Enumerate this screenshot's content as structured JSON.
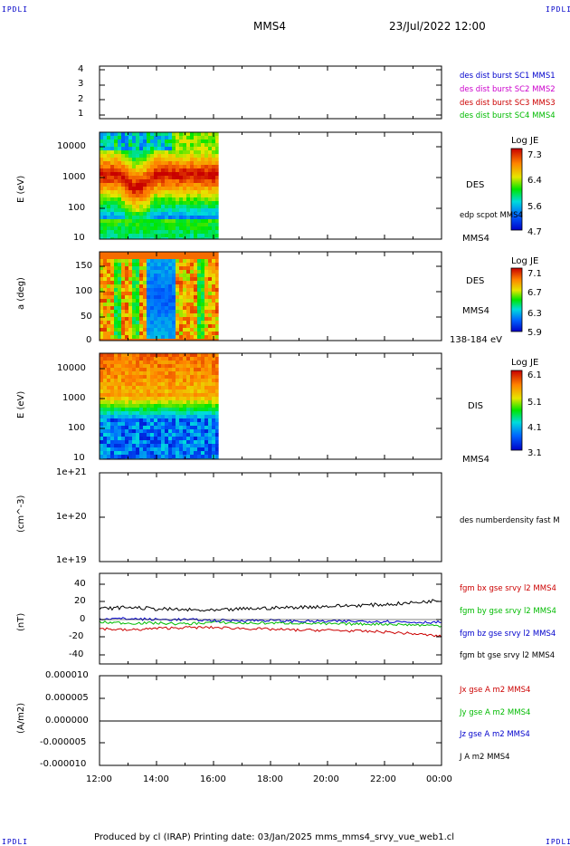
{
  "corners": {
    "tl": "IPDLI",
    "tr": "IPDLI",
    "bl": "IPDLI",
    "br": "IPDLI"
  },
  "header": {
    "spacecraft": "MMS4",
    "datetime": "23/Jul/2022 12:00"
  },
  "footer": {
    "text": "Produced by cl (IRAP)   Printing date: 03/Jan/2025   mms_mms4_srvy_vue_web1.cl"
  },
  "panels": {
    "p1": {
      "yticks": [
        "4",
        "3",
        "2",
        "1"
      ],
      "legend": [
        {
          "text": "des dist burst SC1 MMS1",
          "color": "#0000cc"
        },
        {
          "text": "des dist burst SC2 MMS2",
          "color": "#cc00cc"
        },
        {
          "text": "des dist burst SC3 MMS3",
          "color": "#cc0000"
        },
        {
          "text": "des dist burst SC4 MMS4",
          "color": "#00bb00"
        }
      ]
    },
    "p2": {
      "ylabel": "E (eV)",
      "yticks": [
        "10000",
        "1000",
        "100",
        "10"
      ],
      "instrument": "DES",
      "overlay": "edp scpot MMS4",
      "spacecraft": "MMS4",
      "cb_title": "Log JE",
      "cb_ticks": [
        "7.3",
        "6.4",
        "5.6",
        "4.7"
      ]
    },
    "p3": {
      "ylabel": "a (deg)",
      "yticks": [
        "150",
        "100",
        "50",
        "0"
      ],
      "instrument": "DES",
      "spacecraft": "MMS4",
      "energy_range": "138-184 eV",
      "cb_title": "Log JE",
      "cb_ticks": [
        "7.1",
        "6.7",
        "6.3",
        "5.9"
      ]
    },
    "p4": {
      "ylabel": "E (eV)",
      "yticks": [
        "10000",
        "1000",
        "100",
        "10"
      ],
      "instrument": "DIS",
      "spacecraft": "MMS4",
      "cb_title": "Log JE",
      "cb_ticks": [
        "6.1",
        "5.1",
        "4.1",
        "3.1"
      ]
    },
    "p5": {
      "ylabel": "(cm^-3)",
      "yticks": [
        "1e+21",
        "1e+20",
        "1e+19"
      ],
      "legend": "des numberdensity fast M"
    },
    "p6": {
      "ylabel": "(nT)",
      "yticks": [
        "40",
        "20",
        "0",
        "-20",
        "-40"
      ],
      "legend": [
        {
          "text": "fgm bx gse srvy l2 MMS4",
          "color": "#cc0000"
        },
        {
          "text": "fgm by gse srvy l2 MMS4",
          "color": "#00bb00"
        },
        {
          "text": "fgm bz gse srvy l2 MMS4",
          "color": "#0000cc"
        },
        {
          "text": "fgm bt gse srvy l2 MMS4",
          "color": "#000000"
        }
      ]
    },
    "p7": {
      "ylabel": "(A/m2)",
      "yticks": [
        "0.000010",
        "0.000005",
        "0.000000",
        "-0.000005",
        "-0.000010"
      ],
      "legend": [
        {
          "text": "Jx gse A m2 MMS4",
          "color": "#cc0000"
        },
        {
          "text": "Jy gse A m2 MMS4",
          "color": "#00bb00"
        },
        {
          "text": "Jz gse A m2 MMS4",
          "color": "#0000cc"
        },
        {
          "text": "J A m2 MMS4",
          "color": "#000000"
        }
      ]
    }
  },
  "xticks": [
    "12:00",
    "14:00",
    "16:00",
    "18:00",
    "20:00",
    "22:00",
    "00:00"
  ],
  "chart_data": [
    {
      "type": "line",
      "panel": "spacecraft availability",
      "ylim": [
        0.5,
        4.5
      ],
      "series": []
    },
    {
      "type": "heatmap",
      "panel": "DES energy spectrogram",
      "ylabel": "E (eV)",
      "log_y": true,
      "ylim": [
        10,
        30000
      ],
      "x_coverage": [
        "12:00",
        "16:10"
      ],
      "colorbar": {
        "title": "Log JE",
        "range": [
          4.7,
          7.3
        ]
      }
    },
    {
      "type": "heatmap",
      "panel": "DES pitch angle",
      "ylabel": "a (deg)",
      "ylim": [
        0,
        180
      ],
      "x_coverage": [
        "12:00",
        "16:10"
      ],
      "colorbar": {
        "title": "Log JE",
        "range": [
          5.9,
          7.1
        ]
      }
    },
    {
      "type": "heatmap",
      "panel": "DIS energy spectrogram",
      "ylabel": "E (eV)",
      "log_y": true,
      "ylim": [
        10,
        30000
      ],
      "x_coverage": [
        "12:00",
        "16:10"
      ],
      "colorbar": {
        "title": "Log JE",
        "range": [
          3.1,
          6.1
        ]
      }
    },
    {
      "type": "line",
      "panel": "number density",
      "ylabel": "(cm^-3)",
      "log_y": true,
      "ylim": [
        1e+19,
        1e+21
      ],
      "series": []
    },
    {
      "type": "line",
      "panel": "magnetic field",
      "ylabel": "(nT)",
      "ylim": [
        -45,
        45
      ],
      "x": [
        "12:00",
        "13:00",
        "14:00",
        "15:00",
        "16:00",
        "17:00",
        "18:00",
        "19:00",
        "20:00",
        "21:00",
        "22:00",
        "23:00",
        "00:00"
      ],
      "series": [
        {
          "name": "fgm bx gse srvy l2 MMS4",
          "color": "#cc0000",
          "values": [
            -10,
            -12,
            -10,
            -9,
            -9,
            -10,
            -11,
            -12,
            -12,
            -13,
            -14,
            -16,
            -19
          ]
        },
        {
          "name": "fgm by gse srvy l2 MMS4",
          "color": "#00bb00",
          "values": [
            -3,
            -4,
            -4,
            -5,
            -3,
            -4,
            -4,
            -4,
            -5,
            -5,
            -5,
            -6,
            -7
          ]
        },
        {
          "name": "fgm bz gse srvy l2 MMS4",
          "color": "#0000cc",
          "values": [
            1,
            1,
            0,
            0,
            -1,
            -1,
            -1,
            -2,
            -2,
            -2,
            -2,
            -3,
            -3
          ]
        },
        {
          "name": "fgm bt gse srvy l2 MMS4",
          "color": "#000000",
          "values": [
            12,
            14,
            12,
            11,
            10,
            12,
            13,
            14,
            15,
            16,
            17,
            19,
            22
          ]
        }
      ]
    },
    {
      "type": "line",
      "panel": "current density",
      "ylabel": "(A/m2)",
      "ylim": [
        -1e-05,
        1e-05
      ],
      "x": [
        "12:00",
        "14:00",
        "16:00",
        "18:00",
        "20:00",
        "22:00",
        "00:00"
      ],
      "series": [
        {
          "name": "J A m2 MMS4",
          "color": "#000000",
          "values": [
            0,
            0,
            0,
            0,
            0,
            0,
            0
          ]
        }
      ]
    }
  ]
}
